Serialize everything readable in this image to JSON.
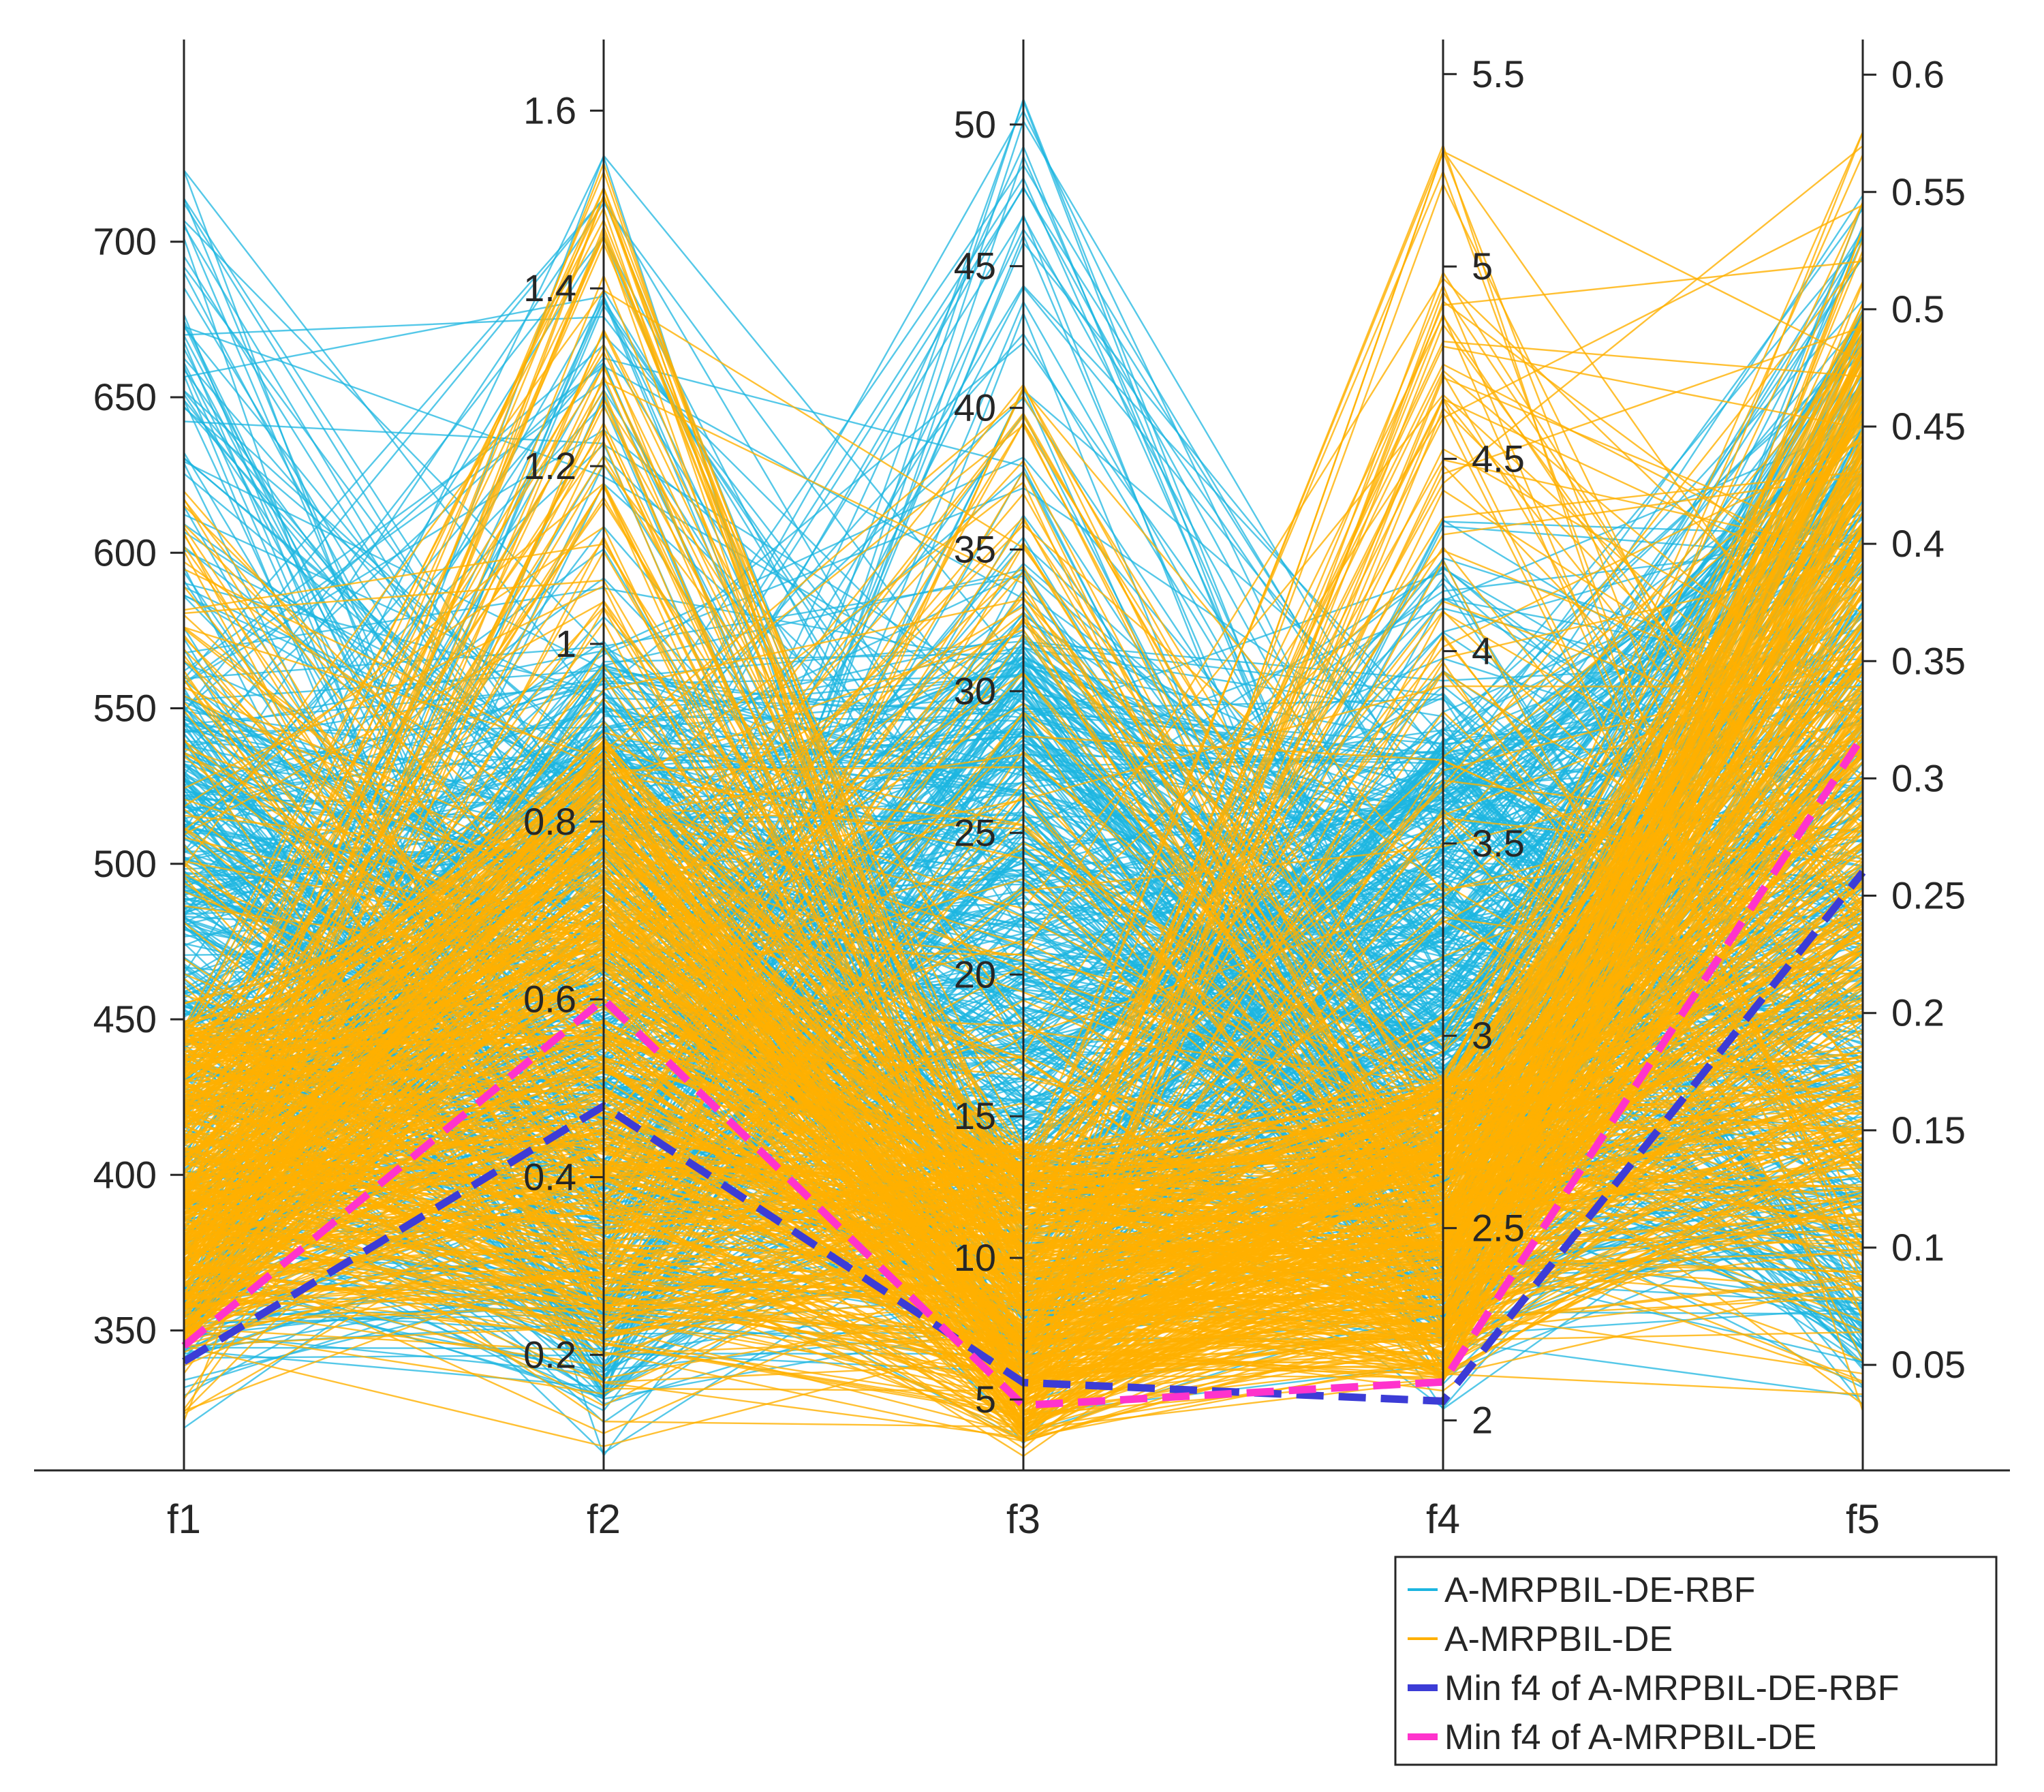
{
  "chart_data": {
    "type": "parallel-coordinates",
    "title": "",
    "axes": [
      {
        "name": "f1",
        "range": [
          305,
          765
        ],
        "ticks": [
          350,
          400,
          450,
          500,
          550,
          600,
          650,
          700
        ],
        "tick_side": "left"
      },
      {
        "name": "f2",
        "range": [
          0.07,
          1.68
        ],
        "ticks": [
          0.2,
          0.4,
          0.6,
          0.8,
          1,
          1.2,
          1.4,
          1.6
        ],
        "tick_side": "left"
      },
      {
        "name": "f3",
        "range": [
          2.5,
          53
        ],
        "ticks": [
          5,
          10,
          15,
          20,
          25,
          30,
          35,
          40,
          45,
          50
        ],
        "tick_side": "left"
      },
      {
        "name": "f4",
        "range": [
          1.87,
          5.59
        ],
        "ticks": [
          2,
          2.5,
          3,
          3.5,
          4,
          4.5,
          5,
          5.5
        ],
        "tick_side": "right"
      },
      {
        "name": "f5",
        "range": [
          0.005,
          0.615
        ],
        "ticks": [
          0.05,
          0.1,
          0.15,
          0.2,
          0.25,
          0.3,
          0.35,
          0.4,
          0.45,
          0.5,
          0.55,
          0.6
        ],
        "tick_side": "right"
      }
    ],
    "series": [
      {
        "name": "A-MRPBIL-DE-RBF",
        "color": "#1CB5E0",
        "style": "solid-thin",
        "ranges": {
          "f1": [
            316,
            740
          ],
          "f2": [
            0.08,
            1.6
          ],
          "f3": [
            3.2,
            51
          ],
          "f4": [
            2.02,
            4.35
          ],
          "f5": [
            0.027,
            0.55
          ]
        },
        "typical": {
          "f1": [
            340,
            560
          ],
          "f2": [
            0.15,
            1.0
          ],
          "f3": [
            6,
            32
          ],
          "f4": [
            2.2,
            3.8
          ],
          "f5": [
            0.05,
            0.5
          ]
        }
      },
      {
        "name": "A-MRPBIL-DE",
        "color": "#FFB000",
        "style": "solid-thin",
        "ranges": {
          "f1": [
            320,
            620
          ],
          "f2": [
            0.09,
            1.55
          ],
          "f3": [
            3.0,
            41
          ],
          "f4": [
            2.05,
            5.35
          ],
          "f5": [
            0.03,
            0.58
          ]
        },
        "typical": {
          "f1": [
            345,
            450
          ],
          "f2": [
            0.2,
            0.9
          ],
          "f3": [
            3.5,
            14
          ],
          "f4": [
            2.1,
            2.9
          ],
          "f5": [
            0.08,
            0.5
          ]
        }
      },
      {
        "name": "Min f4 of A-MRPBIL-DE-RBF",
        "color": "#3C3CD6",
        "style": "dashed-thick",
        "values": [
          340,
          0.48,
          5.6,
          2.05,
          0.26
        ]
      },
      {
        "name": "Min f4 of A-MRPBIL-DE",
        "color": "#FF33CC",
        "style": "dashed-thick",
        "values": [
          345,
          0.6,
          4.8,
          2.1,
          0.318
        ]
      }
    ],
    "legend": {
      "position": "bottom-right",
      "entries": [
        "A-MRPBIL-DE-RBF",
        "A-MRPBIL-DE",
        "Min f4 of A-MRPBIL-DE-RBF",
        "Min f4 of A-MRPBIL-DE"
      ]
    }
  }
}
